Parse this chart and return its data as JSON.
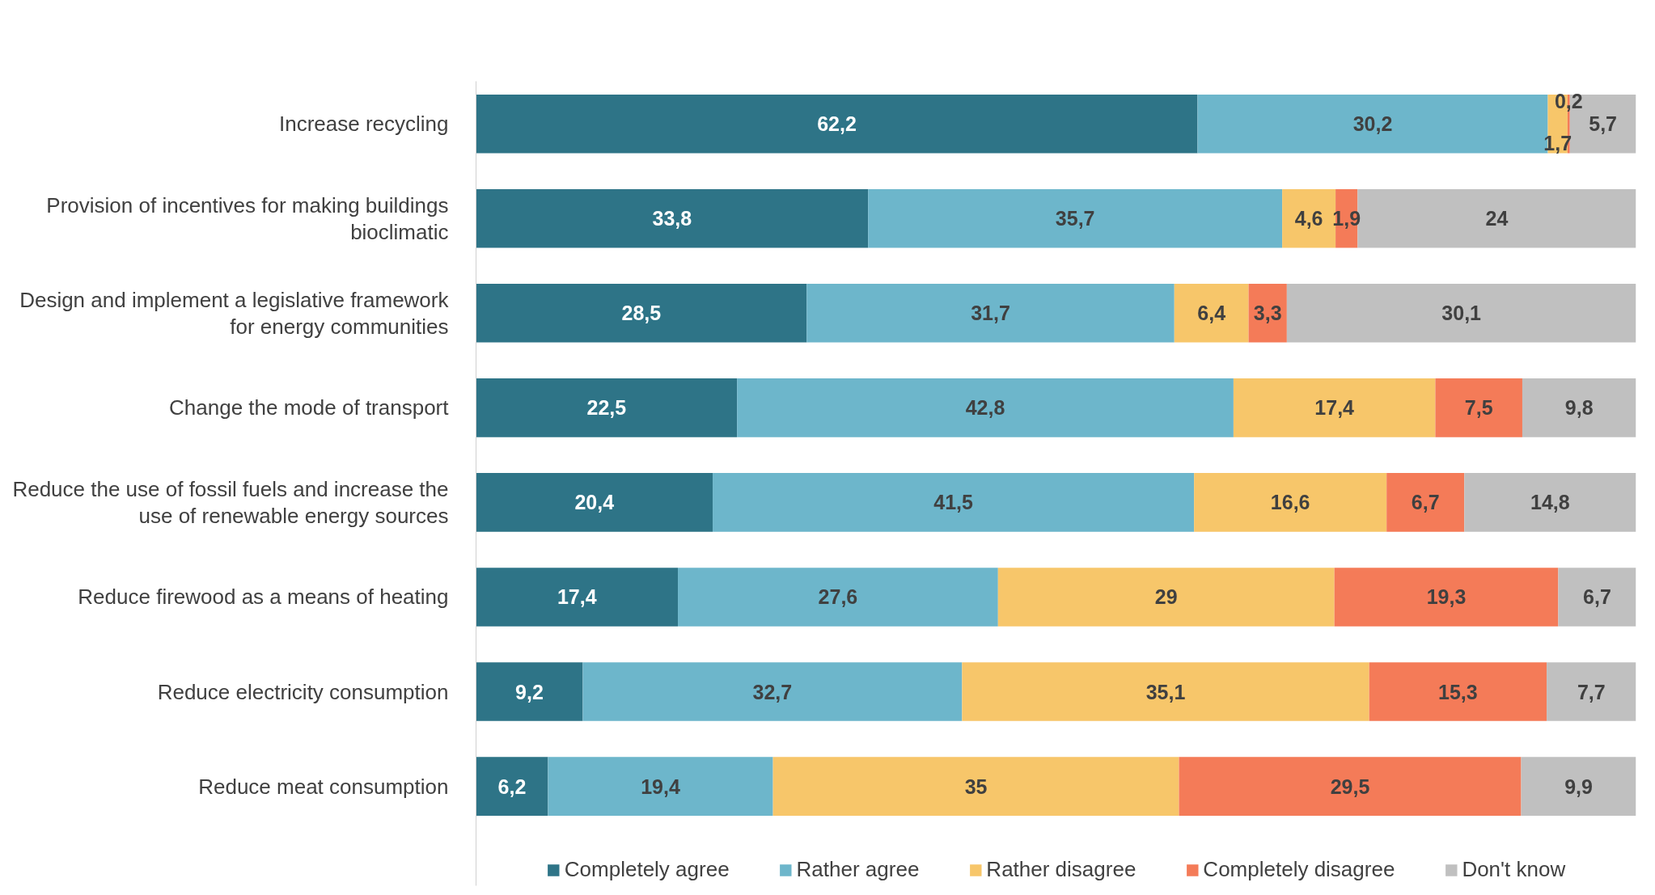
{
  "chart_data": {
    "type": "bar",
    "orientation": "horizontal",
    "stacked": true,
    "data_labels": true,
    "legend": "bottom",
    "grid": false,
    "tick_labels": "y",
    "xlim": [
      0,
      100
    ],
    "categories": [
      "Increase recycling",
      "Provision of incentives for making buildings bioclimatic",
      "Design and implement a legislative framework for energy communities",
      "Change the mode of transport",
      "Reduce the use of fossil fuels and increase the use of renewable energy sources",
      "Reduce firewood as a means of heating",
      "Reduce electricity consumption",
      "Reduce meat consumption"
    ],
    "series": [
      {
        "name": "Completely agree",
        "color": "#2e7487",
        "values": [
          62.2,
          33.8,
          28.5,
          22.5,
          20.4,
          17.4,
          9.2,
          6.2
        ],
        "value_labels": [
          "62,2",
          "33,8",
          "28,5",
          "22,5",
          "20,4",
          "17,4",
          "9,2",
          "6,2"
        ]
      },
      {
        "name": "Rather agree",
        "color": "#6db6cb",
        "values": [
          30.2,
          35.7,
          31.7,
          42.8,
          41.5,
          27.6,
          32.7,
          19.4
        ],
        "value_labels": [
          "30,2",
          "35,7",
          "31,7",
          "42,8",
          "41,5",
          "27,6",
          "32,7",
          "19,4"
        ]
      },
      {
        "name": "Rather disagree",
        "color": "#f7c66a",
        "values": [
          1.7,
          4.6,
          6.4,
          17.4,
          16.6,
          29,
          35.1,
          35
        ],
        "value_labels": [
          "1,7",
          "4,6",
          "6,4",
          "17,4",
          "16,6",
          "29",
          "35,1",
          "35"
        ]
      },
      {
        "name": "Completely disagree",
        "color": "#f47b58",
        "values": [
          0.2,
          1.9,
          3.3,
          7.5,
          6.7,
          19.3,
          15.3,
          29.5
        ],
        "value_labels": [
          "0,2",
          "1,9",
          "3,3",
          "7,5",
          "6,7",
          "19,3",
          "15,3",
          "29,5"
        ]
      },
      {
        "name": "Don't know",
        "color": "#c0c0c0",
        "values": [
          5.7,
          24,
          30.1,
          9.8,
          14.8,
          6.7,
          7.7,
          9.9
        ],
        "value_labels": [
          "5,7",
          "24",
          "30,1",
          "9,8",
          "14,8",
          "6,7",
          "7,7",
          "9,9"
        ]
      }
    ]
  }
}
